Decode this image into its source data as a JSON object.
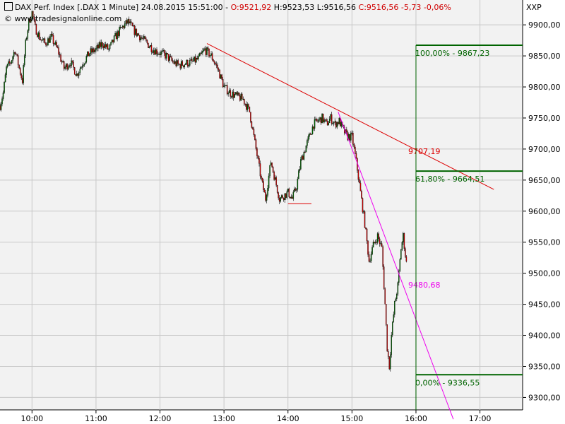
{
  "header": {
    "instrument": "DAX Perf. Index [.DAX",
    "interval": "1 Minute]",
    "datetime": "24.08.2015 15:51:00",
    "open": "O:9521,92",
    "high": "H:9523,53",
    "low": "L:9516,56",
    "close": "C:9516,56",
    "change": "-5,73",
    "change_pct": "-0,06%",
    "source": "www.tradesignalonline.com",
    "symbol_box": "XXP"
  },
  "colors": {
    "background": "#f2f2f2",
    "grid": "#c8c8c8",
    "up_candle": "#006400",
    "down_candle": "#cc0000",
    "red_line": "#dd0000",
    "magenta_line": "#ee00ee",
    "fib_line": "#006400"
  },
  "chart_data": {
    "type": "candlestick",
    "title": "DAX Perf. Index [.DAX 1 Minute]",
    "ylim": [
      9280,
      9940
    ],
    "yticks": [
      9300,
      9350,
      9400,
      9450,
      9500,
      9550,
      9600,
      9650,
      9700,
      9750,
      9800,
      9850,
      9900
    ],
    "ytick_labels": [
      "9300,00",
      "9350,00",
      "9400,00",
      "9450,00",
      "9500,00",
      "9550,00",
      "9600,00",
      "9650,00",
      "9700,00",
      "9750,00",
      "9800,00",
      "9850,00",
      "9900,00"
    ],
    "xlim": [
      "09:30",
      "17:40"
    ],
    "xticks": [
      "10:00",
      "11:00",
      "12:00",
      "13:00",
      "14:00",
      "15:00",
      "16:00",
      "17:00"
    ],
    "xtick_labels": [
      "10:00",
      "11:00",
      "12:00",
      "13:00",
      "14:00",
      "15:00",
      "16:00",
      "17:00"
    ],
    "grid": true,
    "price_path": [
      [
        "09:30",
        9770
      ],
      [
        "09:33",
        9790
      ],
      [
        "09:36",
        9830
      ],
      [
        "09:40",
        9840
      ],
      [
        "09:44",
        9860
      ],
      [
        "09:48",
        9830
      ],
      [
        "09:51",
        9810
      ],
      [
        "09:54",
        9870
      ],
      [
        "09:57",
        9905
      ],
      [
        "10:00",
        9920
      ],
      [
        "10:03",
        9895
      ],
      [
        "10:07",
        9880
      ],
      [
        "10:12",
        9870
      ],
      [
        "10:18",
        9880
      ],
      [
        "10:24",
        9860
      ],
      [
        "10:30",
        9830
      ],
      [
        "10:36",
        9840
      ],
      [
        "10:42",
        9820
      ],
      [
        "10:48",
        9840
      ],
      [
        "10:54",
        9855
      ],
      [
        "11:00",
        9860
      ],
      [
        "11:06",
        9870
      ],
      [
        "11:12",
        9860
      ],
      [
        "11:18",
        9880
      ],
      [
        "11:24",
        9895
      ],
      [
        "11:30",
        9905
      ],
      [
        "11:36",
        9890
      ],
      [
        "11:42",
        9880
      ],
      [
        "11:48",
        9870
      ],
      [
        "11:54",
        9860
      ],
      [
        "12:00",
        9855
      ],
      [
        "12:06",
        9850
      ],
      [
        "12:12",
        9840
      ],
      [
        "12:18",
        9835
      ],
      [
        "12:24",
        9838
      ],
      [
        "12:30",
        9840
      ],
      [
        "12:36",
        9845
      ],
      [
        "12:42",
        9860
      ],
      [
        "12:48",
        9850
      ],
      [
        "12:54",
        9830
      ],
      [
        "13:00",
        9800
      ],
      [
        "13:06",
        9790
      ],
      [
        "13:12",
        9785
      ],
      [
        "13:18",
        9780
      ],
      [
        "13:24",
        9760
      ],
      [
        "13:30",
        9700
      ],
      [
        "13:35",
        9650
      ],
      [
        "13:39",
        9620
      ],
      [
        "13:44",
        9680
      ],
      [
        "13:48",
        9650
      ],
      [
        "13:52",
        9620
      ],
      [
        "13:56",
        9625
      ],
      [
        "14:00",
        9630
      ],
      [
        "14:04",
        9620
      ],
      [
        "14:08",
        9640
      ],
      [
        "14:12",
        9680
      ],
      [
        "14:16",
        9700
      ],
      [
        "14:20",
        9720
      ],
      [
        "14:24",
        9740
      ],
      [
        "14:28",
        9745
      ],
      [
        "14:32",
        9750
      ],
      [
        "14:36",
        9740
      ],
      [
        "14:40",
        9750
      ],
      [
        "14:44",
        9740
      ],
      [
        "14:48",
        9745
      ],
      [
        "14:52",
        9730
      ],
      [
        "14:56",
        9720
      ],
      [
        "15:00",
        9720
      ],
      [
        "15:04",
        9680
      ],
      [
        "15:08",
        9630
      ],
      [
        "15:12",
        9580
      ],
      [
        "15:16",
        9520
      ],
      [
        "15:20",
        9545
      ],
      [
        "15:24",
        9560
      ],
      [
        "15:28",
        9540
      ],
      [
        "15:31",
        9450
      ],
      [
        "15:33",
        9380
      ],
      [
        "15:35",
        9350
      ],
      [
        "15:37",
        9400
      ],
      [
        "15:40",
        9450
      ],
      [
        "15:43",
        9480
      ],
      [
        "15:46",
        9540
      ],
      [
        "15:48",
        9560
      ],
      [
        "15:50",
        9530
      ],
      [
        "15:51",
        9516.56
      ]
    ],
    "annotations": [
      {
        "kind": "trendline",
        "color": "red",
        "from": [
          "12:44",
          9870
        ],
        "to": [
          "17:13",
          9635
        ],
        "label": "9707,19"
      },
      {
        "kind": "trendline",
        "color": "magenta",
        "from": [
          "14:47",
          9760
        ],
        "to": [
          "16:35",
          9265
        ],
        "label": "9480,68"
      },
      {
        "kind": "level",
        "color": "green",
        "from": "16:00",
        "to": "17:40",
        "value": 9867.23,
        "label": "100,00% - 9867,23"
      },
      {
        "kind": "level",
        "color": "green",
        "from": "16:00",
        "to": "17:40",
        "value": 9664.51,
        "label": "61,80% - 9664,51"
      },
      {
        "kind": "level",
        "color": "green",
        "from": "16:00",
        "to": "17:40",
        "value": 9336.55,
        "label": "0,00% - 9336,55"
      },
      {
        "kind": "support",
        "color": "red",
        "from": "14:00",
        "to": "14:22",
        "value": 9612
      }
    ]
  }
}
